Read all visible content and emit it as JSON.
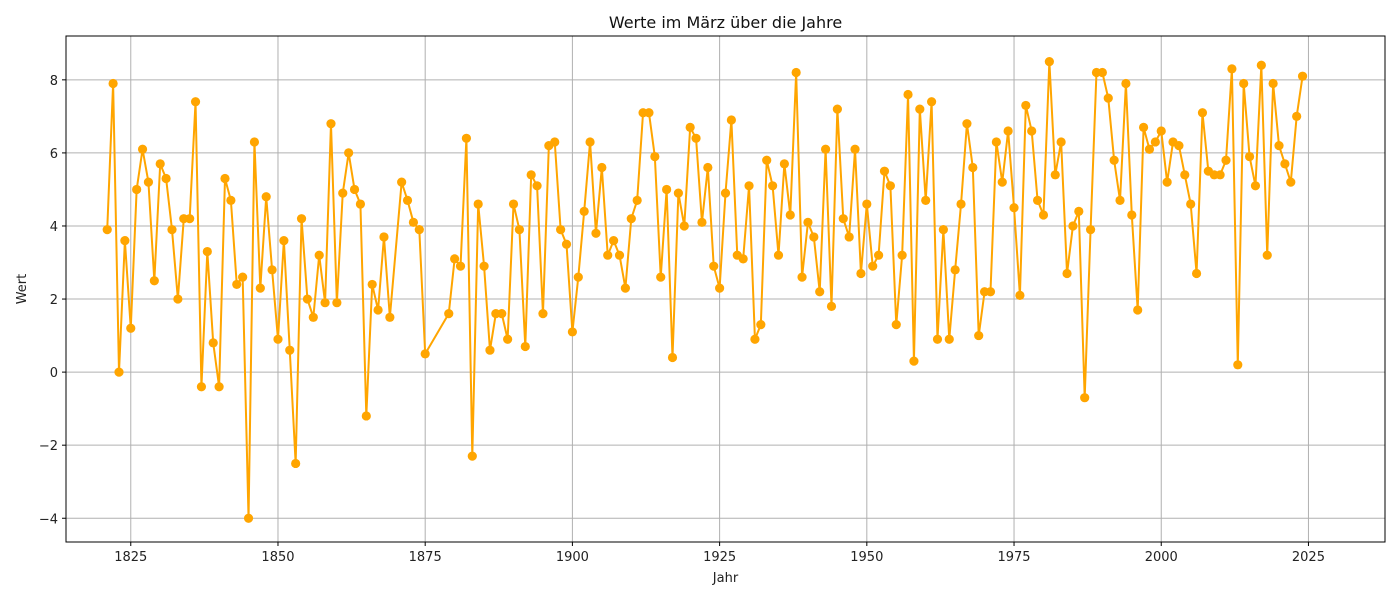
{
  "chart_data": {
    "type": "line",
    "title": "Werte im März über die Jahre",
    "xlabel": "Jahr",
    "ylabel": "Wert",
    "xlim": [
      1814,
      2038
    ],
    "ylim": [
      -4.65,
      9.2
    ],
    "xticks": [
      1825,
      1850,
      1875,
      1900,
      1925,
      1950,
      1975,
      2000,
      2025
    ],
    "yticks": [
      -4,
      -2,
      0,
      2,
      4,
      6,
      8
    ],
    "grid": true,
    "legend": "none",
    "series": [
      {
        "color": "#FFA500",
        "marker": "circle",
        "points": [
          [
            1821,
            3.9
          ],
          [
            1822,
            7.9
          ],
          [
            1823,
            0.0
          ],
          [
            1824,
            3.6
          ],
          [
            1825,
            1.2
          ],
          [
            1826,
            5.0
          ],
          [
            1827,
            6.1
          ],
          [
            1828,
            5.2
          ],
          [
            1829,
            2.5
          ],
          [
            1830,
            5.7
          ],
          [
            1831,
            5.3
          ],
          [
            1832,
            3.9
          ],
          [
            1833,
            2.0
          ],
          [
            1834,
            4.2
          ],
          [
            1835,
            4.2
          ],
          [
            1836,
            7.4
          ],
          [
            1837,
            -0.4
          ],
          [
            1838,
            3.3
          ],
          [
            1839,
            0.8
          ],
          [
            1840,
            -0.4
          ],
          [
            1841,
            5.3
          ],
          [
            1842,
            4.7
          ],
          [
            1843,
            2.4
          ],
          [
            1844,
            2.6
          ],
          [
            1845,
            -4.0
          ],
          [
            1846,
            6.3
          ],
          [
            1847,
            2.3
          ],
          [
            1848,
            4.8
          ],
          [
            1849,
            2.8
          ],
          [
            1850,
            0.9
          ],
          [
            1851,
            3.6
          ],
          [
            1852,
            0.6
          ],
          [
            1853,
            -2.5
          ],
          [
            1854,
            4.2
          ],
          [
            1855,
            2.0
          ],
          [
            1856,
            1.5
          ],
          [
            1857,
            3.2
          ],
          [
            1858,
            1.9
          ],
          [
            1859,
            6.8
          ],
          [
            1860,
            1.9
          ],
          [
            1861,
            4.9
          ],
          [
            1862,
            6.0
          ],
          [
            1863,
            5.0
          ],
          [
            1864,
            4.6
          ],
          [
            1865,
            -1.2
          ],
          [
            1866,
            2.4
          ],
          [
            1867,
            1.7
          ],
          [
            1868,
            3.7
          ],
          [
            1869,
            1.5
          ],
          [
            1871,
            5.2
          ],
          [
            1872,
            4.7
          ],
          [
            1873,
            4.1
          ],
          [
            1874,
            3.9
          ],
          [
            1875,
            0.5
          ],
          [
            1879,
            1.6
          ],
          [
            1880,
            3.1
          ],
          [
            1881,
            2.9
          ],
          [
            1882,
            6.4
          ],
          [
            1883,
            -2.3
          ],
          [
            1884,
            4.6
          ],
          [
            1885,
            2.9
          ],
          [
            1886,
            0.6
          ],
          [
            1887,
            1.6
          ],
          [
            1888,
            1.6
          ],
          [
            1889,
            0.9
          ],
          [
            1890,
            4.6
          ],
          [
            1891,
            3.9
          ],
          [
            1892,
            0.7
          ],
          [
            1893,
            5.4
          ],
          [
            1894,
            5.1
          ],
          [
            1895,
            1.6
          ],
          [
            1896,
            6.2
          ],
          [
            1897,
            6.3
          ],
          [
            1898,
            3.9
          ],
          [
            1899,
            3.5
          ],
          [
            1900,
            1.1
          ],
          [
            1901,
            2.6
          ],
          [
            1902,
            4.4
          ],
          [
            1903,
            6.3
          ],
          [
            1904,
            3.8
          ],
          [
            1905,
            5.6
          ],
          [
            1906,
            3.2
          ],
          [
            1907,
            3.6
          ],
          [
            1908,
            3.2
          ],
          [
            1909,
            2.3
          ],
          [
            1910,
            4.2
          ],
          [
            1911,
            4.7
          ],
          [
            1912,
            7.1
          ],
          [
            1913,
            7.1
          ],
          [
            1914,
            5.9
          ],
          [
            1915,
            2.6
          ],
          [
            1916,
            5.0
          ],
          [
            1917,
            0.4
          ],
          [
            1918,
            4.9
          ],
          [
            1919,
            4.0
          ],
          [
            1920,
            6.7
          ],
          [
            1921,
            6.4
          ],
          [
            1922,
            4.1
          ],
          [
            1923,
            5.6
          ],
          [
            1924,
            2.9
          ],
          [
            1925,
            2.3
          ],
          [
            1926,
            4.9
          ],
          [
            1927,
            6.9
          ],
          [
            1928,
            3.2
          ],
          [
            1929,
            3.1
          ],
          [
            1930,
            5.1
          ],
          [
            1931,
            0.9
          ],
          [
            1932,
            1.3
          ],
          [
            1933,
            5.8
          ],
          [
            1934,
            5.1
          ],
          [
            1935,
            3.2
          ],
          [
            1936,
            5.7
          ],
          [
            1937,
            4.3
          ],
          [
            1938,
            8.2
          ],
          [
            1939,
            2.6
          ],
          [
            1940,
            4.1
          ],
          [
            1941,
            3.7
          ],
          [
            1942,
            2.2
          ],
          [
            1943,
            6.1
          ],
          [
            1944,
            1.8
          ],
          [
            1945,
            7.2
          ],
          [
            1946,
            4.2
          ],
          [
            1947,
            3.7
          ],
          [
            1948,
            6.1
          ],
          [
            1949,
            2.7
          ],
          [
            1950,
            4.6
          ],
          [
            1951,
            2.9
          ],
          [
            1952,
            3.2
          ],
          [
            1953,
            5.5
          ],
          [
            1954,
            5.1
          ],
          [
            1955,
            1.3
          ],
          [
            1956,
            3.2
          ],
          [
            1957,
            7.6
          ],
          [
            1958,
            0.3
          ],
          [
            1959,
            7.2
          ],
          [
            1960,
            4.7
          ],
          [
            1961,
            7.4
          ],
          [
            1962,
            0.9
          ],
          [
            1963,
            3.9
          ],
          [
            1964,
            0.9
          ],
          [
            1965,
            2.8
          ],
          [
            1966,
            4.6
          ],
          [
            1967,
            6.8
          ],
          [
            1968,
            5.6
          ],
          [
            1969,
            1.0
          ],
          [
            1970,
            2.2
          ],
          [
            1971,
            2.2
          ],
          [
            1972,
            6.3
          ],
          [
            1973,
            5.2
          ],
          [
            1974,
            6.6
          ],
          [
            1975,
            4.5
          ],
          [
            1976,
            2.1
          ],
          [
            1977,
            7.3
          ],
          [
            1978,
            6.6
          ],
          [
            1979,
            4.7
          ],
          [
            1980,
            4.3
          ],
          [
            1981,
            8.5
          ],
          [
            1982,
            5.4
          ],
          [
            1983,
            6.3
          ],
          [
            1984,
            2.7
          ],
          [
            1985,
            4.0
          ],
          [
            1986,
            4.4
          ],
          [
            1987,
            -0.7
          ],
          [
            1988,
            3.9
          ],
          [
            1989,
            8.2
          ],
          [
            1990,
            8.2
          ],
          [
            1991,
            7.5
          ],
          [
            1992,
            5.8
          ],
          [
            1993,
            4.7
          ],
          [
            1994,
            7.9
          ],
          [
            1995,
            4.3
          ],
          [
            1996,
            1.7
          ],
          [
            1997,
            6.7
          ],
          [
            1998,
            6.1
          ],
          [
            1999,
            6.3
          ],
          [
            2000,
            6.6
          ],
          [
            2001,
            5.2
          ],
          [
            2002,
            6.3
          ],
          [
            2003,
            6.2
          ],
          [
            2004,
            5.4
          ],
          [
            2005,
            4.6
          ],
          [
            2006,
            2.7
          ],
          [
            2007,
            7.1
          ],
          [
            2008,
            5.5
          ],
          [
            2009,
            5.4
          ],
          [
            2010,
            5.4
          ],
          [
            2011,
            5.8
          ],
          [
            2012,
            8.3
          ],
          [
            2013,
            0.2
          ],
          [
            2014,
            7.9
          ],
          [
            2015,
            5.9
          ],
          [
            2016,
            5.1
          ],
          [
            2017,
            8.4
          ],
          [
            2018,
            3.2
          ],
          [
            2019,
            7.9
          ],
          [
            2020,
            6.2
          ],
          [
            2021,
            5.7
          ],
          [
            2022,
            5.2
          ],
          [
            2023,
            7.0
          ],
          [
            2024,
            8.1
          ]
        ]
      }
    ]
  }
}
